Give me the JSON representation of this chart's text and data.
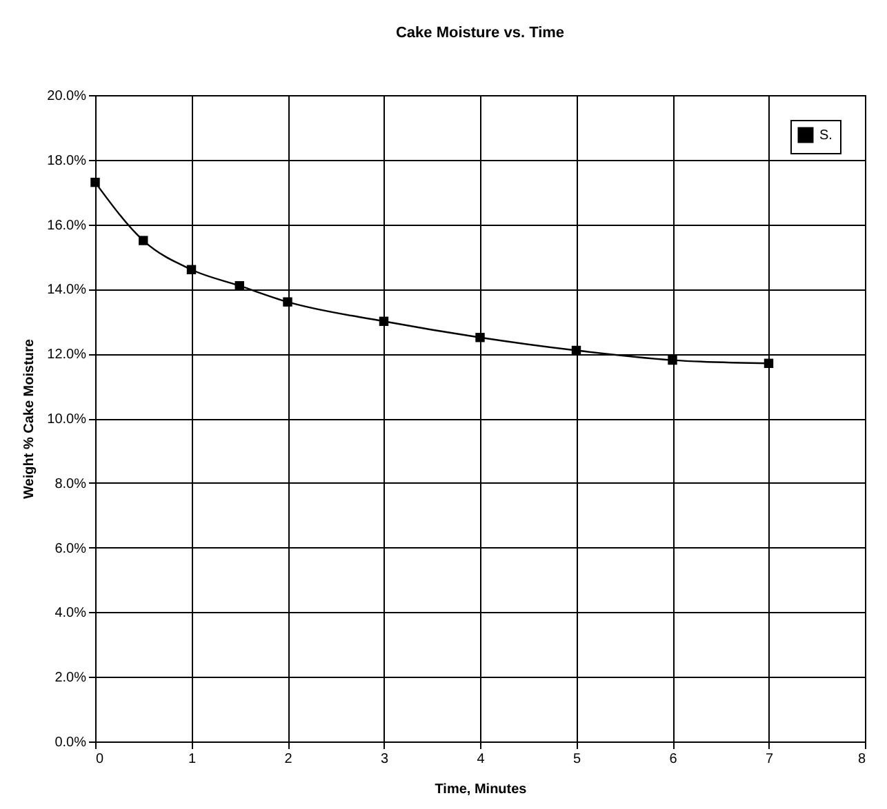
{
  "chart_data": {
    "type": "line",
    "title": "Cake Moisture vs. Time",
    "xlabel": "Time, Minutes",
    "ylabel": "Weight % Cake Moisture",
    "x": [
      0,
      0.5,
      1,
      1.5,
      2,
      3,
      4,
      5,
      6,
      7
    ],
    "series": [
      {
        "name": "S.",
        "color": "#000000",
        "values": [
          17.3,
          15.5,
          14.6,
          14.1,
          13.6,
          13.0,
          12.5,
          12.1,
          11.8,
          11.7
        ]
      }
    ],
    "xlim": [
      0,
      8
    ],
    "xticks": [
      0,
      1,
      2,
      3,
      4,
      5,
      6,
      7,
      8
    ],
    "ylim": [
      0,
      20
    ],
    "yticks": [
      {
        "value": 0,
        "label": "0.0%"
      },
      {
        "value": 2,
        "label": "2.0%"
      },
      {
        "value": 4,
        "label": "4.0%"
      },
      {
        "value": 6,
        "label": "6.0%"
      },
      {
        "value": 8,
        "label": "8.0%"
      },
      {
        "value": 10,
        "label": "10.0%"
      },
      {
        "value": 12,
        "label": "12.0%"
      },
      {
        "value": 14,
        "label": "14.0%"
      },
      {
        "value": 16,
        "label": "16.0%"
      },
      {
        "value": 18,
        "label": "18.0%"
      },
      {
        "value": 20,
        "label": "20.0%"
      }
    ],
    "grid": true,
    "legend": "top right",
    "marker": "square",
    "line_style": "solid"
  }
}
